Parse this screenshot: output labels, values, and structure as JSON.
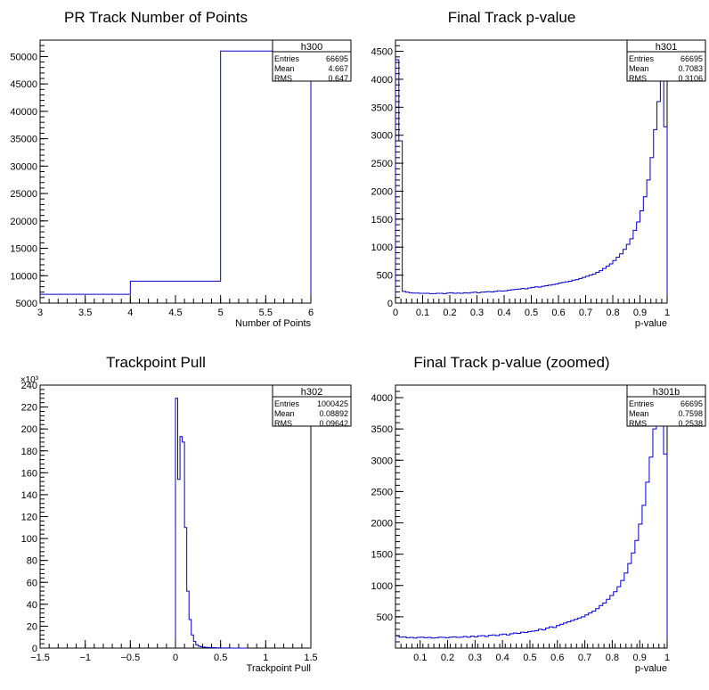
{
  "chart_data": [
    {
      "type": "histogram",
      "title": "PR Track Number of Points",
      "xlabel": "Number of Points",
      "ylabel": "",
      "xlim": [
        3,
        6
      ],
      "ylim": [
        5000,
        53000
      ],
      "y_exponent": "",
      "x_ticks": [
        "3",
        "3.5",
        "4",
        "4.5",
        "5",
        "5.5",
        "6"
      ],
      "y_ticks": [
        "5000",
        "10000",
        "15000",
        "20000",
        "25000",
        "30000",
        "35000",
        "40000",
        "45000",
        "50000"
      ],
      "bins": [
        3,
        4,
        5,
        6
      ],
      "counts": [
        6600,
        9000,
        51000
      ],
      "stats": {
        "name": "h300",
        "entries_label": "Entries",
        "entries": "66695",
        "mean_label": "Mean",
        "mean": "4.667",
        "rms_label": "RMS",
        "rms": "0.647"
      }
    },
    {
      "type": "histogram",
      "title": "Final Track p-value",
      "xlabel": "p-value",
      "ylabel": "",
      "xlim": [
        0,
        1
      ],
      "ylim": [
        0,
        4700
      ],
      "y_exponent": "",
      "x_ticks": [
        "0",
        "0.1",
        "0.2",
        "0.3",
        "0.4",
        "0.5",
        "0.6",
        "0.7",
        "0.8",
        "0.9",
        "1"
      ],
      "y_ticks": [
        "0",
        "500",
        "1000",
        "1500",
        "2000",
        "2500",
        "3000",
        "3500",
        "4000",
        "4500"
      ],
      "bin_range": [
        0,
        1
      ],
      "counts": [
        4350,
        2900,
        210,
        195,
        185,
        180,
        180,
        175,
        175,
        175,
        170,
        170,
        175,
        175,
        170,
        180,
        185,
        175,
        180,
        175,
        185,
        180,
        190,
        195,
        185,
        195,
        200,
        205,
        200,
        210,
        220,
        215,
        220,
        230,
        240,
        245,
        250,
        260,
        255,
        270,
        280,
        290,
        285,
        300,
        310,
        320,
        330,
        340,
        360,
        370,
        380,
        390,
        410,
        420,
        440,
        460,
        480,
        500,
        520,
        550,
        580,
        620,
        660,
        700,
        760,
        820,
        880,
        960,
        1050,
        1150,
        1300,
        1450,
        1650,
        1900,
        2200,
        2600,
        3100,
        3600,
        4250,
        3150
      ],
      "stats": {
        "name": "h301",
        "entries_label": "Entries",
        "entries": "66695",
        "mean_label": "Mean",
        "mean": "0.7083",
        "rms_label": "RMS",
        "rms": "0.3106"
      }
    },
    {
      "type": "histogram",
      "title": "Trackpoint Pull",
      "xlabel": "Trackpoint Pull",
      "ylabel": "",
      "xlim": [
        -1.5,
        1.5
      ],
      "ylim": [
        0,
        240000
      ],
      "y_exponent": "×10³",
      "x_ticks": [
        "−1.5",
        "−1",
        "−0.5",
        "0",
        "0.5",
        "1",
        "1.5"
      ],
      "y_ticks": [
        "0",
        "20",
        "40",
        "60",
        "80",
        "100",
        "120",
        "140",
        "160",
        "180",
        "200",
        "220",
        "240"
      ],
      "bin_range": [
        0,
        0.8
      ],
      "counts": [
        228000,
        154000,
        193000,
        188000,
        110000,
        52000,
        26000,
        12000,
        6000,
        3000,
        1800,
        1200,
        900,
        700,
        600,
        500,
        400,
        300,
        250,
        200,
        150,
        100,
        80,
        60,
        40,
        30,
        20,
        10,
        0,
        0,
        0,
        0
      ],
      "stats": {
        "name": "h302",
        "entries_label": "Entries",
        "entries": "1000425",
        "mean_label": "Mean",
        "mean": "0.08892",
        "rms_label": "RMS",
        "rms": "0.09642"
      }
    },
    {
      "type": "histogram",
      "title": "Final Track p-value (zoomed)",
      "xlabel": "p-value",
      "ylabel": "",
      "xlim": [
        0.01,
        1
      ],
      "ylim": [
        0,
        4200
      ],
      "y_exponent": "",
      "x_ticks": [
        "0.1",
        "0.2",
        "0.3",
        "0.4",
        "0.5",
        "0.6",
        "0.7",
        "0.8",
        "0.9",
        "1"
      ],
      "y_ticks": [
        "500",
        "1000",
        "1500",
        "2000",
        "2500",
        "3000",
        "3500",
        "4000"
      ],
      "bin_range": [
        0.01,
        1
      ],
      "counts": [
        195,
        175,
        180,
        165,
        170,
        160,
        170,
        175,
        165,
        170,
        160,
        165,
        175,
        170,
        165,
        175,
        180,
        170,
        175,
        185,
        175,
        190,
        180,
        195,
        200,
        185,
        205,
        210,
        200,
        215,
        225,
        210,
        230,
        240,
        235,
        255,
        250,
        265,
        270,
        280,
        300,
        290,
        320,
        340,
        330,
        360,
        380,
        400,
        420,
        440,
        460,
        480,
        500,
        530,
        560,
        590,
        630,
        680,
        720,
        780,
        840,
        900,
        980,
        1080,
        1200,
        1350,
        1520,
        1720,
        1980,
        2280,
        2650,
        3050,
        3500,
        4050,
        3700,
        3100
      ],
      "stats": {
        "name": "h301b",
        "entries_label": "Entries",
        "entries": "66695",
        "mean_label": "Mean",
        "mean": "0.7598",
        "rms_label": "RMS",
        "rms": "0.2538"
      }
    }
  ]
}
